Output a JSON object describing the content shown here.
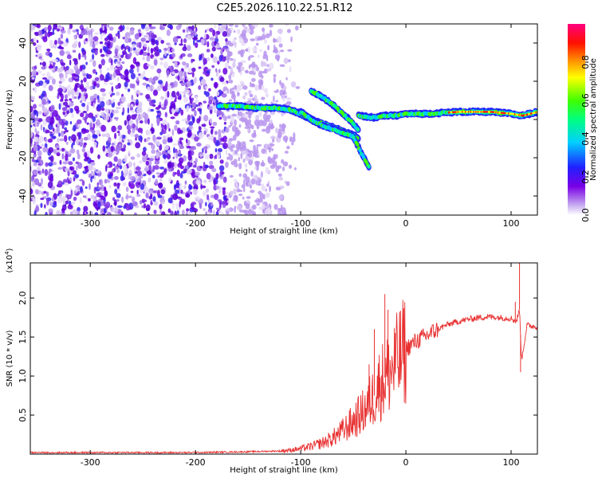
{
  "chart_data": [
    {
      "type": "heatmap",
      "title": "C2E5.2026.110.22.51.R12",
      "xlabel": "Height of straight line (km)",
      "ylabel": "Frequency (Hz)",
      "xlim": [
        -357,
        125
      ],
      "ylim": [
        -50,
        50
      ],
      "xticks": [
        -300,
        -200,
        -100,
        0,
        100
      ],
      "yticks": [
        -40,
        -20,
        0,
        20,
        40
      ],
      "colorbar": {
        "label": "Normalized spectral amplitude",
        "range": [
          0,
          1
        ],
        "ticks": [
          0.0,
          0.2,
          0.4,
          0.6,
          0.8
        ]
      },
      "noise_region": {
        "x_from": -357,
        "x_to": -140,
        "description_levels": "low"
      },
      "tracks": [
        {
          "x": [
            -178,
            -160,
            -140,
            -120,
            -110,
            -100,
            -90,
            -80,
            -70,
            -60,
            -50,
            -45
          ],
          "y": [
            7,
            7,
            6,
            6,
            5,
            3,
            0,
            -2,
            -4,
            -6,
            -8,
            -10
          ]
        },
        {
          "x": [
            -90,
            -80,
            -70,
            -60,
            -50,
            -45
          ],
          "y": [
            15,
            12,
            8,
            3,
            -2,
            -6
          ]
        },
        {
          "x": [
            -100,
            -90,
            -80,
            -70,
            -60,
            -50,
            -42,
            -35
          ],
          "y": [
            4,
            0,
            -3,
            -5,
            -7,
            -9,
            -18,
            -25
          ]
        },
        {
          "x": [
            -45,
            -30,
            -20,
            -10,
            0,
            20,
            50,
            80,
            100,
            110,
            125
          ],
          "y": [
            2,
            1,
            2,
            2,
            3,
            3,
            4,
            4,
            3,
            2,
            4
          ]
        }
      ]
    },
    {
      "type": "line",
      "title": "",
      "xlabel": "Height of straight line (km)",
      "ylabel": "SNR (10 * v/v)",
      "multiplier": "(x10^4)",
      "multiplier_base": "(x10",
      "multiplier_exp": "4",
      "xlim": [
        -357,
        125
      ],
      "ylim": [
        0,
        2.45
      ],
      "xticks": [
        -300,
        -200,
        -100,
        0,
        100
      ],
      "yticks": [
        0.5,
        1.0,
        1.5,
        2.0
      ],
      "color": "#e83030",
      "series": [
        {
          "x": [
            -357,
            -300,
            -250,
            -200,
            -150,
            -120,
            -110,
            -100,
            -90,
            -80,
            -70,
            -60,
            -50,
            -40,
            -30,
            -25,
            -20,
            -15,
            -10,
            -5,
            0,
            10,
            20,
            30,
            40,
            50,
            60,
            70,
            80,
            90,
            100,
            105,
            108,
            110,
            115,
            125
          ],
          "y": [
            0.02,
            0.02,
            0.02,
            0.02,
            0.03,
            0.04,
            0.05,
            0.07,
            0.1,
            0.14,
            0.2,
            0.3,
            0.42,
            0.55,
            0.75,
            0.9,
            0.98,
            1.05,
            1.15,
            1.25,
            1.35,
            1.45,
            1.52,
            1.6,
            1.66,
            1.7,
            1.73,
            1.75,
            1.76,
            1.75,
            1.74,
            1.7,
            1.85,
            1.2,
            1.65,
            1.63
          ]
        }
      ],
      "spikes": [
        {
          "x": -20,
          "y": 2.05
        },
        {
          "x": -17,
          "y": 1.85
        },
        {
          "x": -35,
          "y": 1.15
        },
        {
          "x": -30,
          "y": 1.6
        },
        {
          "x": -10,
          "y": 1.55
        },
        {
          "x": 108,
          "y": 2.45
        },
        {
          "x": 104,
          "y": 1.95
        },
        {
          "x": 109,
          "y": 1.05
        }
      ]
    }
  ]
}
